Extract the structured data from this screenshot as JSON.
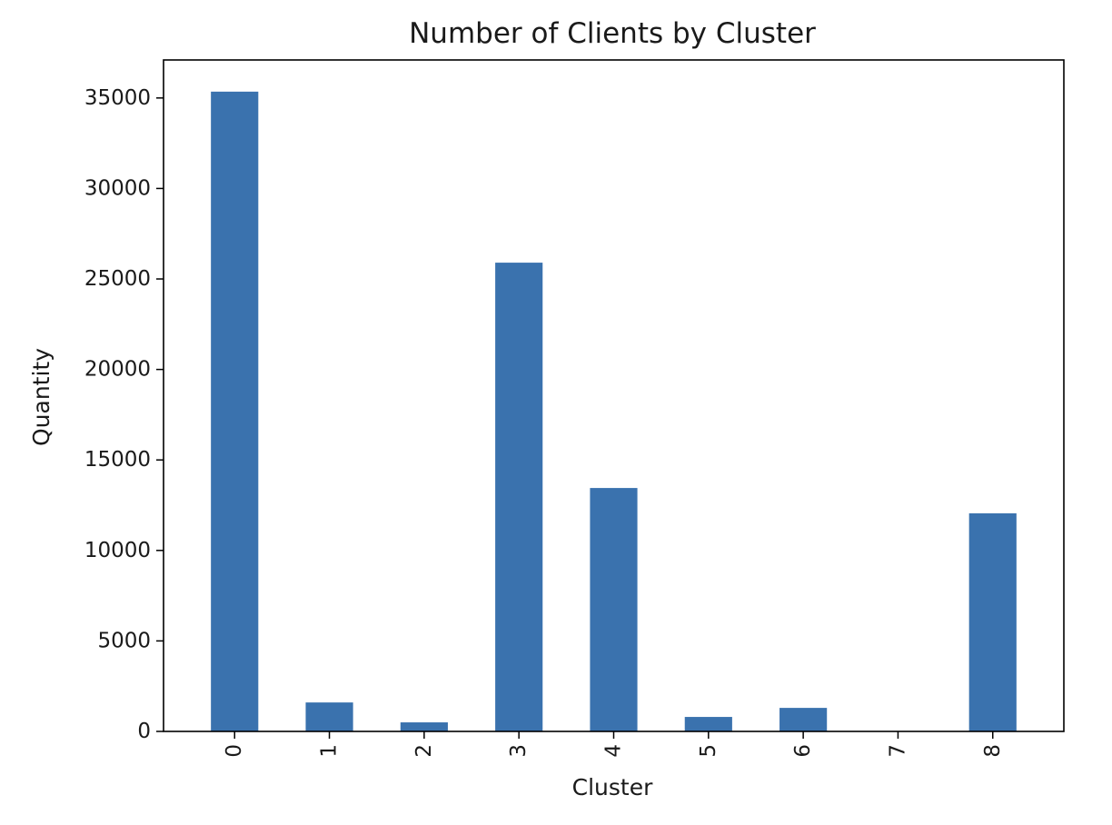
{
  "chart_data": {
    "type": "bar",
    "title": "Number of Clients by Cluster",
    "xlabel": "Cluster",
    "ylabel": "Quantity",
    "categories": [
      "0",
      "1",
      "2",
      "3",
      "4",
      "5",
      "6",
      "7",
      "8"
    ],
    "values": [
      35350,
      1600,
      500,
      25900,
      13450,
      800,
      1300,
      0,
      12050
    ],
    "ylim": [
      0,
      37100
    ],
    "yticks": [
      0,
      5000,
      10000,
      15000,
      20000,
      25000,
      30000,
      35000
    ],
    "ytick_labels": [
      "0",
      "5000",
      "10000",
      "15000",
      "20000",
      "25000",
      "30000",
      "35000"
    ],
    "grid": false,
    "legend": null,
    "bar_color": "#3a72ae",
    "xtick_rotation": "vertical"
  }
}
